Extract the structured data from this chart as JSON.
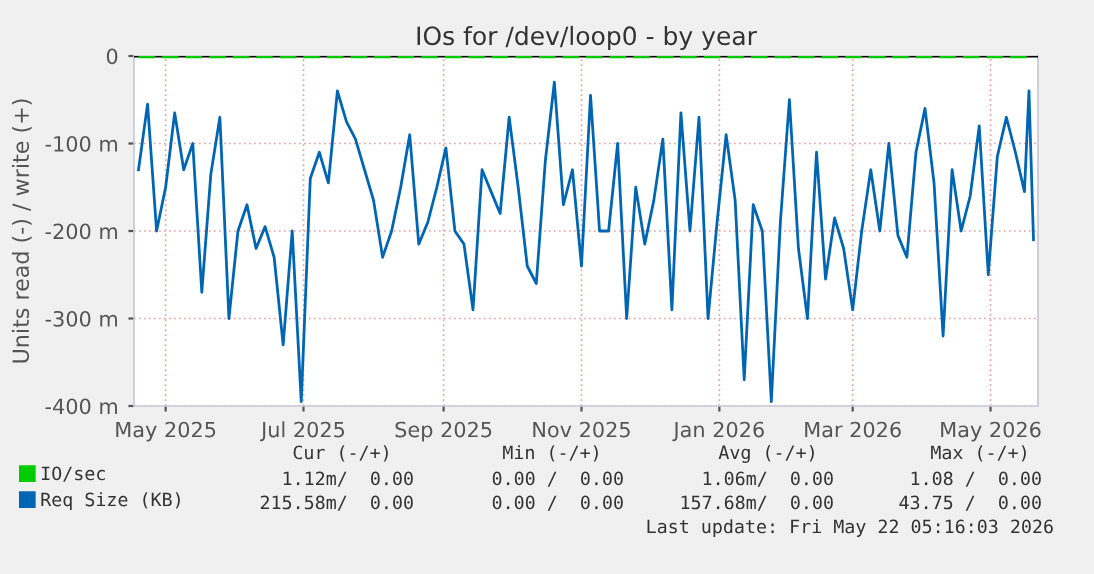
{
  "chart_data": {
    "type": "line",
    "title": "IOs for /dev/loop0 - by year",
    "ylabel": "Units read (-) / write (+)",
    "xlim": [
      "2025-04-17",
      "2026-05-22"
    ],
    "xticks": [
      {
        "value": "2025-05-01",
        "label": "May 2025"
      },
      {
        "value": "2025-07-01",
        "label": "Jul 2025"
      },
      {
        "value": "2025-09-01",
        "label": "Sep 2025"
      },
      {
        "value": "2025-11-01",
        "label": "Nov 2025"
      },
      {
        "value": "2026-01-01",
        "label": "Jan 2026"
      },
      {
        "value": "2026-03-01",
        "label": "Mar 2026"
      },
      {
        "value": "2026-05-01",
        "label": "May 2026"
      }
    ],
    "ylim": [
      -400,
      0
    ],
    "yticks": [
      {
        "value": -400,
        "label": "-400 m"
      },
      {
        "value": -300,
        "label": "-300 m"
      },
      {
        "value": -200,
        "label": "-200 m"
      },
      {
        "value": -100,
        "label": "-100 m"
      },
      0
    ],
    "grid": true,
    "legend": "bottom left",
    "ref_lines": [
      {
        "axis": "y",
        "value": 0,
        "color": "#000000"
      }
    ],
    "series": [
      {
        "name": "IO/sec",
        "color": "#00cc00",
        "line_style": "dashed",
        "x": [
          "2025-04-19",
          "2026-05-20"
        ],
        "values": [
          0,
          0
        ]
      },
      {
        "name": "Req Size (KB)",
        "color": "#0066b3",
        "x": [
          "2025-04-19",
          "2025-04-23",
          "2025-04-27",
          "2025-05-01",
          "2025-05-05",
          "2025-05-09",
          "2025-05-13",
          "2025-05-17",
          "2025-05-21",
          "2025-05-25",
          "2025-05-29",
          "2025-06-02",
          "2025-06-06",
          "2025-06-10",
          "2025-06-14",
          "2025-06-18",
          "2025-06-22",
          "2025-06-26",
          "2025-06-30",
          "2025-07-04",
          "2025-07-08",
          "2025-07-12",
          "2025-07-16",
          "2025-07-20",
          "2025-07-24",
          "2025-07-28",
          "2025-08-01",
          "2025-08-05",
          "2025-08-09",
          "2025-08-13",
          "2025-08-17",
          "2025-08-21",
          "2025-08-25",
          "2025-08-29",
          "2025-09-02",
          "2025-09-06",
          "2025-09-10",
          "2025-09-14",
          "2025-09-18",
          "2025-09-22",
          "2025-09-26",
          "2025-09-30",
          "2025-10-04",
          "2025-10-08",
          "2025-10-12",
          "2025-10-16",
          "2025-10-20",
          "2025-10-24",
          "2025-10-28",
          "2025-11-01",
          "2025-11-05",
          "2025-11-09",
          "2025-11-13",
          "2025-11-17",
          "2025-11-21",
          "2025-11-25",
          "2025-11-29",
          "2025-12-03",
          "2025-12-07",
          "2025-12-11",
          "2025-12-15",
          "2025-12-19",
          "2025-12-23",
          "2025-12-27",
          "2025-12-31",
          "2026-01-04",
          "2026-01-08",
          "2026-01-12",
          "2026-01-16",
          "2026-01-20",
          "2026-01-24",
          "2026-01-28",
          "2026-02-01",
          "2026-02-05",
          "2026-02-09",
          "2026-02-13",
          "2026-02-17",
          "2026-02-21",
          "2026-02-25",
          "2026-03-01",
          "2026-03-05",
          "2026-03-09",
          "2026-03-13",
          "2026-03-17",
          "2026-03-21",
          "2026-03-25",
          "2026-03-29",
          "2026-04-02",
          "2026-04-06",
          "2026-04-10",
          "2026-04-14",
          "2026-04-18",
          "2026-04-22",
          "2026-04-26",
          "2026-04-30",
          "2026-05-04",
          "2026-05-08",
          "2026-05-12",
          "2026-05-16",
          "2026-05-18",
          "2026-05-20"
        ],
        "values": [
          -130,
          -55,
          -200,
          -150,
          -65,
          -130,
          -100,
          -270,
          -135,
          -70,
          -300,
          -200,
          -170,
          -220,
          -195,
          -230,
          -330,
          -200,
          -395,
          -140,
          -110,
          -145,
          -40,
          -75,
          -95,
          -130,
          -165,
          -230,
          -200,
          -150,
          -90,
          -215,
          -190,
          -150,
          -105,
          -200,
          -215,
          -290,
          -130,
          -155,
          -180,
          -70,
          -150,
          -240,
          -260,
          -120,
          -30,
          -170,
          -130,
          -240,
          -45,
          -200,
          -200,
          -100,
          -300,
          -150,
          -215,
          -165,
          -95,
          -290,
          -65,
          -200,
          -70,
          -300,
          -190,
          -90,
          -165,
          -370,
          -170,
          -200,
          -395,
          -190,
          -50,
          -220,
          -300,
          -110,
          -255,
          -185,
          -220,
          -290,
          -200,
          -130,
          -200,
          -100,
          -205,
          -230,
          -110,
          -60,
          -145,
          -320,
          -130,
          -200,
          -160,
          -80,
          -250,
          -115,
          -70,
          -110,
          -155,
          -40,
          -210
        ]
      }
    ],
    "annotations": [
      "Cur (-/+)",
      "Min (-/+)",
      "Avg (-/+)",
      "Max (-/+)",
      "1.12m/  0.00",
      "0.00 /  0.00",
      "1.06m/  0.00",
      "1.08 /  0.00",
      "215.58m/  0.00",
      "0.00 /  0.00",
      "157.68m/  0.00",
      "43.75 /  0.00",
      "Last update: Fri May 22 05:16:03 2026"
    ]
  }
}
